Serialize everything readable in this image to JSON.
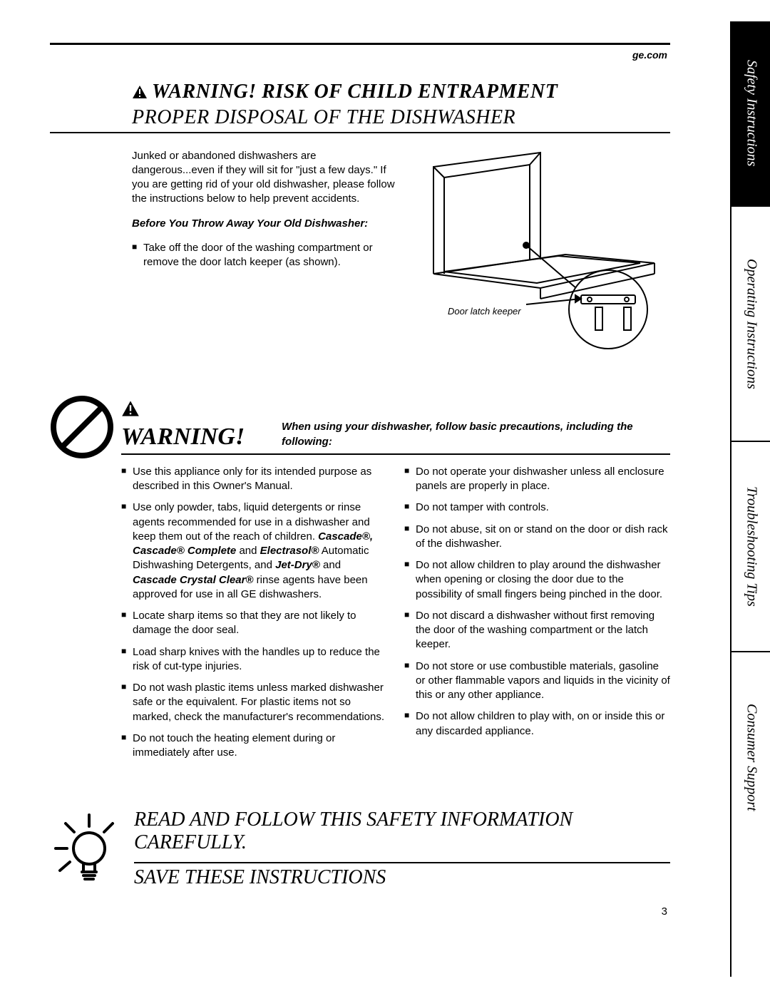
{
  "url": "ge.com",
  "section1": {
    "title_line1": "WARNING! RISK OF CHILD ENTRAPMENT",
    "title_line2": "PROPER DISPOSAL OF THE DISHWASHER",
    "intro": "Junked or abandoned dishwashers are dangerous...even if they will sit for \"just a few days.\" If you are getting rid of your old dishwasher, please follow the instructions below to help prevent accidents.",
    "before_heading": "Before You Throw Away Your Old Dishwasher:",
    "bullet1": "Take off the door of the washing compartment or remove the door latch keeper (as shown).",
    "diagram_caption": "Door latch keeper"
  },
  "section2": {
    "title": "WARNING!",
    "subtitle": "When using your dishwasher, follow basic precautions, including the following:",
    "col1": [
      "Use this appliance only for its intended purpose as described in this Owner's Manual.",
      "Use only powder, tabs, liquid detergents or rinse agents recommended for use in a dishwasher and keep them out of the reach of children. <b><i>Cascade®, Cascade® Complete</i></b> and <b><i>Electrasol®</i></b> Automatic Dishwashing Detergents, and <b><i>Jet-Dry®</i></b> and <b><i>Cascade Crystal Clear®</i></b> rinse agents have been approved for use in all GE dishwashers.",
      "Locate sharp items so that they are not likely to damage the door seal.",
      "Load sharp knives with the handles up to reduce the risk of cut-type injuries.",
      "Do not wash plastic items unless marked dishwasher safe or the equivalent. For plastic items not so marked, check the manufacturer's recommendations.",
      "Do not touch the heating element during or immediately after use."
    ],
    "col2": [
      "Do not operate your dishwasher unless all enclosure panels are properly in place.",
      "Do not tamper with controls.",
      "Do not abuse, sit on or stand on the door or dish rack of the dishwasher.",
      "Do not allow children to play around the dishwasher when opening or closing the door due to the possibility of small fingers being pinched in the door.",
      "Do not discard a dishwasher without first removing the door of the washing compartment or the latch keeper.",
      "Do not store or use combustible materials, gasoline or other flammable vapors and liquids in the vicinity of this or any other appliance.",
      "Do not allow children to play with, on or inside this or any discarded appliance."
    ]
  },
  "section3": {
    "line1": "READ AND FOLLOW THIS SAFETY INFORMATION CAREFULLY.",
    "line2": "SAVE THESE INSTRUCTIONS"
  },
  "tabs": [
    "Safety Instructions",
    "Operating Instructions",
    "Troubleshooting Tips",
    "Consumer Support"
  ],
  "page_number": "3",
  "colors": {
    "black": "#000000",
    "white": "#ffffff"
  }
}
